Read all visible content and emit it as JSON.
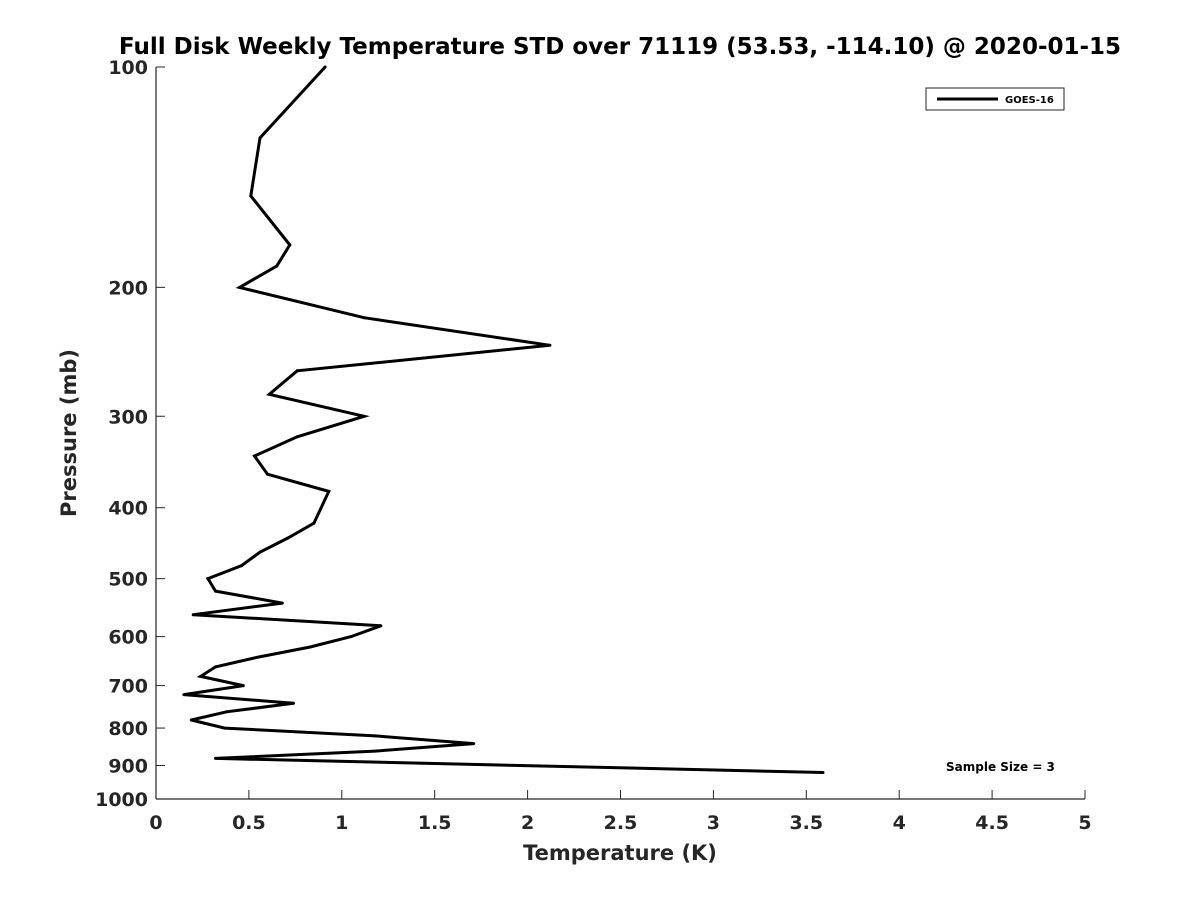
{
  "chart_data": {
    "type": "line",
    "title": "Full Disk Weekly Temperature STD over 71119 (53.53, -114.10) @ 2020-01-15",
    "xlabel": "Temperature (K)",
    "ylabel": "Pressure (mb)",
    "xlim": [
      0,
      5
    ],
    "ylim": [
      100,
      1000
    ],
    "y_scale": "log",
    "y_direction": "reversed",
    "x_ticks": [
      "0",
      "0.5",
      "1",
      "1.5",
      "2",
      "2.5",
      "3",
      "3.5",
      "4",
      "4.5",
      "5"
    ],
    "y_ticks": [
      "100",
      "200",
      "300",
      "400",
      "500",
      "600",
      "700",
      "800",
      "900",
      "1000"
    ],
    "grid": false,
    "legend_position": "top-right",
    "series": [
      {
        "name": "GOES-16",
        "color": "#000000",
        "points": [
          {
            "x": 0.91,
            "y": 100
          },
          {
            "x": 0.56,
            "y": 125
          },
          {
            "x": 0.51,
            "y": 150
          },
          {
            "x": 0.72,
            "y": 175
          },
          {
            "x": 0.65,
            "y": 187
          },
          {
            "x": 0.45,
            "y": 200
          },
          {
            "x": 1.12,
            "y": 220
          },
          {
            "x": 2.12,
            "y": 240
          },
          {
            "x": 0.76,
            "y": 260
          },
          {
            "x": 0.61,
            "y": 280
          },
          {
            "x": 1.12,
            "y": 300
          },
          {
            "x": 0.76,
            "y": 320
          },
          {
            "x": 0.53,
            "y": 340
          },
          {
            "x": 0.6,
            "y": 360
          },
          {
            "x": 0.93,
            "y": 380
          },
          {
            "x": 0.85,
            "y": 420
          },
          {
            "x": 0.71,
            "y": 440
          },
          {
            "x": 0.56,
            "y": 460
          },
          {
            "x": 0.46,
            "y": 480
          },
          {
            "x": 0.28,
            "y": 500
          },
          {
            "x": 0.32,
            "y": 520
          },
          {
            "x": 0.68,
            "y": 540
          },
          {
            "x": 0.2,
            "y": 560
          },
          {
            "x": 1.21,
            "y": 580
          },
          {
            "x": 1.05,
            "y": 600
          },
          {
            "x": 0.83,
            "y": 620
          },
          {
            "x": 0.55,
            "y": 640
          },
          {
            "x": 0.32,
            "y": 660
          },
          {
            "x": 0.24,
            "y": 680
          },
          {
            "x": 0.47,
            "y": 700
          },
          {
            "x": 0.15,
            "y": 720
          },
          {
            "x": 0.74,
            "y": 740
          },
          {
            "x": 0.38,
            "y": 760
          },
          {
            "x": 0.19,
            "y": 780
          },
          {
            "x": 0.37,
            "y": 800
          },
          {
            "x": 1.18,
            "y": 820
          },
          {
            "x": 1.71,
            "y": 840
          },
          {
            "x": 1.18,
            "y": 860
          },
          {
            "x": 0.32,
            "y": 880
          },
          {
            "x": 3.59,
            "y": 920
          }
        ]
      }
    ],
    "annotation": "Sample Size = 3"
  }
}
